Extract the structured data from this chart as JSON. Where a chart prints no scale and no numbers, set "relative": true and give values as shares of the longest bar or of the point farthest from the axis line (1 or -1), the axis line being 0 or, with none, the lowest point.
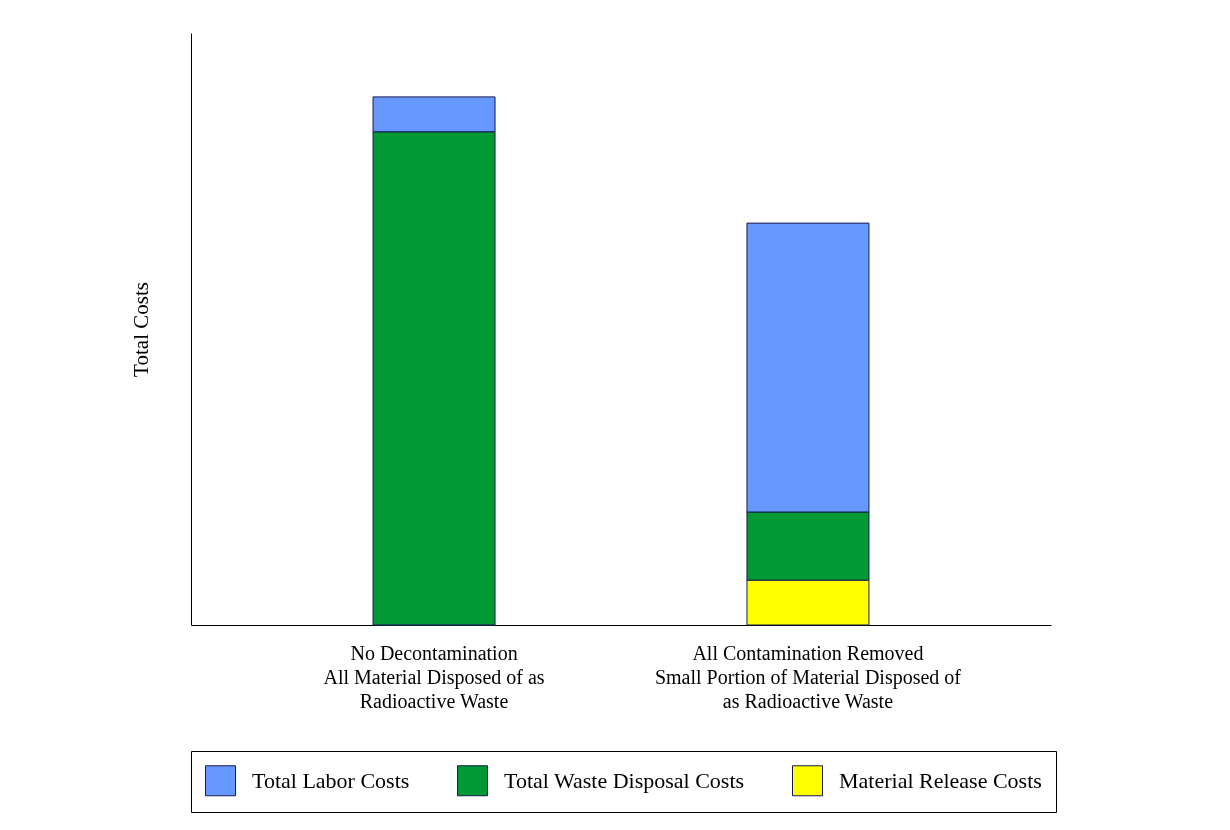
{
  "chart_data": {
    "type": "bar",
    "stacked": true,
    "relative": true,
    "ylabel": "Total Costs",
    "categories": [
      "No Decontamination\nAll Material Disposed of as\nRadioactive Waste",
      "All Contamination Removed\nSmall Portion of Material Disposed of\nas Radioactive Waste"
    ],
    "series": [
      {
        "name": "Material Release Costs",
        "color": "#ffff00",
        "values": [
          0,
          0.085
        ]
      },
      {
        "name": "Total Waste Disposal Costs",
        "color": "#009933",
        "values": [
          0.934,
          0.129
        ]
      },
      {
        "name": "Total Labor Costs",
        "color": "#6699ff",
        "values": [
          0.066,
          0.547
        ]
      }
    ],
    "legend": "bottom",
    "grid": false
  }
}
